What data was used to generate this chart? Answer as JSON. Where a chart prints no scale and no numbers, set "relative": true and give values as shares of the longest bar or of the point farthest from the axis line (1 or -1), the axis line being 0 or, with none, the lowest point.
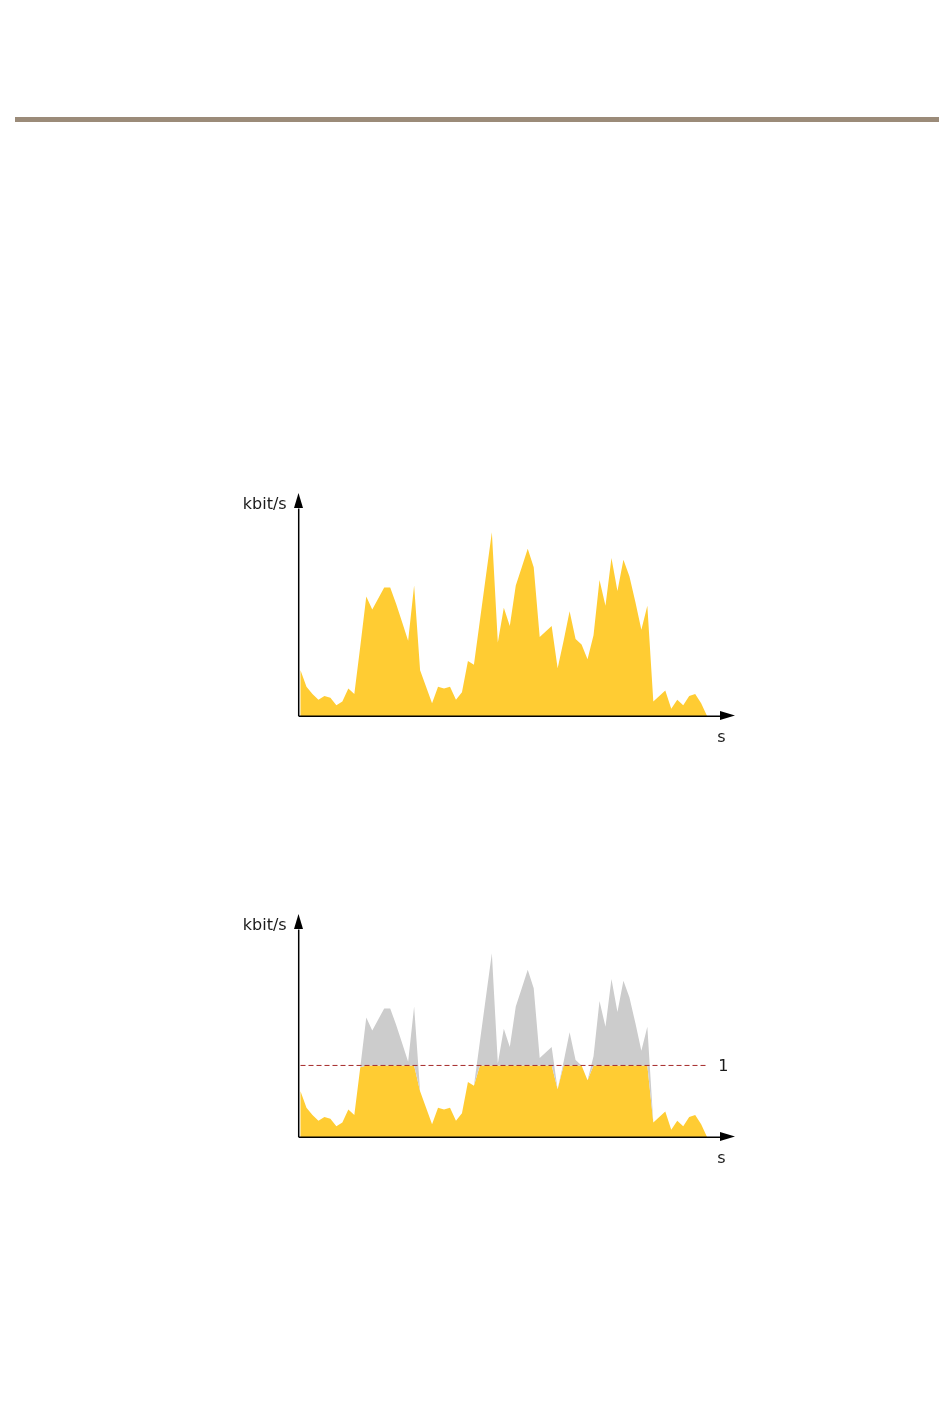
{
  "chart_data": [
    {
      "type": "area",
      "xlabel": "s",
      "ylabel": "kbit/s",
      "relative": true,
      "categories": [
        null,
        null,
        null,
        null,
        null,
        null,
        null,
        null,
        null,
        null,
        null,
        null,
        null,
        null,
        null,
        null,
        null,
        null,
        null,
        null,
        null,
        null,
        null,
        null,
        null,
        null,
        null,
        null,
        null,
        null,
        null,
        null,
        null,
        null,
        null,
        null,
        null,
        null,
        null,
        null,
        null,
        null,
        null,
        null,
        null,
        null,
        null,
        null,
        null,
        null,
        null,
        null,
        null,
        null,
        null,
        null,
        null,
        null,
        null,
        null,
        null,
        null,
        null,
        null,
        null,
        null,
        null,
        null,
        null
      ],
      "series": [
        {
          "color": "#ffcc33",
          "values": [
            0.25,
            0.16,
            0.12,
            0.09,
            0.11,
            0.1,
            0.06,
            0.08,
            0.15,
            0.12,
            0.38,
            0.65,
            0.58,
            0.64,
            0.7,
            0.7,
            0.61,
            0.51,
            0.41,
            0.71,
            0.25,
            0.16,
            0.07,
            0.16,
            0.15,
            0.16,
            0.09,
            0.13,
            0.3,
            0.28,
            0.52,
            0.76,
            1.0,
            0.4,
            0.59,
            0.49,
            0.71,
            0.81,
            0.91,
            0.81,
            0.43,
            0.46,
            0.49,
            0.26,
            0.41,
            0.57,
            0.42,
            0.39,
            0.31,
            0.44,
            0.74,
            0.6,
            0.86,
            0.68,
            0.85,
            0.76,
            0.62,
            0.47,
            0.6,
            0.08,
            0.11,
            0.14,
            0.04,
            0.09,
            0.06,
            0.11,
            0.12,
            0.07,
            0
          ]
        }
      ]
    },
    {
      "type": "area",
      "xlabel": "s",
      "ylabel": "kbit/s",
      "relative": true,
      "stacked": true,
      "categories": [
        null,
        null,
        null,
        null,
        null,
        null,
        null,
        null,
        null,
        null,
        null,
        null,
        null,
        null,
        null,
        null,
        null,
        null,
        null,
        null,
        null,
        null,
        null,
        null,
        null,
        null,
        null,
        null,
        null,
        null,
        null,
        null,
        null,
        null,
        null,
        null,
        null,
        null,
        null,
        null,
        null,
        null,
        null,
        null,
        null,
        null,
        null,
        null,
        null,
        null,
        null,
        null,
        null,
        null,
        null,
        null,
        null,
        null,
        null,
        null,
        null,
        null,
        null,
        null,
        null,
        null,
        null,
        null,
        null
      ],
      "series": [
        {
          "color": "#ffcc33",
          "values": [
            0.25,
            0.16,
            0.12,
            0.09,
            0.11,
            0.1,
            0.06,
            0.08,
            0.15,
            0.12,
            0.38,
            0.39,
            0.39,
            0.39,
            0.39,
            0.39,
            0.39,
            0.39,
            0.39,
            0.39,
            0.25,
            0.16,
            0.07,
            0.16,
            0.15,
            0.16,
            0.09,
            0.13,
            0.3,
            0.28,
            0.39,
            0.39,
            0.39,
            0.39,
            0.39,
            0.39,
            0.39,
            0.39,
            0.39,
            0.39,
            0.39,
            0.39,
            0.39,
            0.26,
            0.39,
            0.39,
            0.39,
            0.39,
            0.31,
            0.39,
            0.39,
            0.39,
            0.39,
            0.39,
            0.39,
            0.39,
            0.39,
            0.39,
            0.39,
            0.08,
            0.11,
            0.14,
            0.04,
            0.09,
            0.06,
            0.11,
            0.12,
            0.07,
            0
          ]
        },
        {
          "color": "#cccccc",
          "values": [
            0,
            0,
            0,
            0,
            0,
            0,
            0,
            0,
            0,
            0,
            0,
            0.26,
            0.19,
            0.25,
            0.31,
            0.31,
            0.22,
            0.12,
            0.02,
            0.32,
            0,
            0,
            0,
            0,
            0,
            0,
            0,
            0,
            0,
            0,
            0.13,
            0.37,
            0.61,
            0.01,
            0.2,
            0.1,
            0.32,
            0.42,
            0.52,
            0.42,
            0.04,
            0.07,
            0.1,
            0,
            0.02,
            0.18,
            0.03,
            0,
            0,
            0.05,
            0.35,
            0.21,
            0.47,
            0.29,
            0.46,
            0.37,
            0.23,
            0.08,
            0.21,
            0,
            0,
            0,
            0,
            0,
            0,
            0,
            0,
            0,
            0
          ]
        }
      ],
      "ref_lines": [
        {
          "axis": "y",
          "value": 0.39,
          "color": "#a52a2a",
          "line_style": "dashed"
        }
      ],
      "annotations": [
        "1"
      ]
    }
  ]
}
